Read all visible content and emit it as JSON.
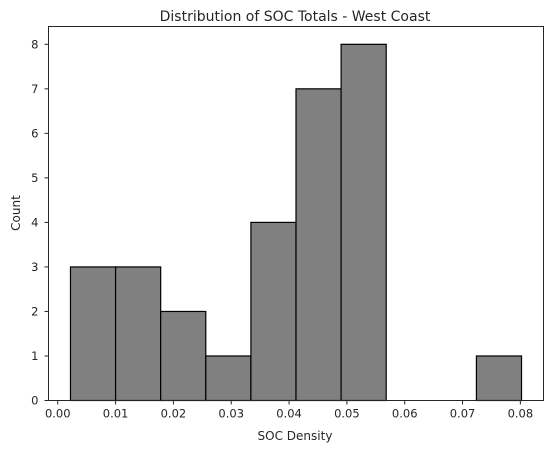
{
  "chart_data": {
    "type": "bar",
    "title": "Distribution of SOC Totals - West Coast",
    "xlabel": "SOC Density",
    "ylabel": "Count",
    "bin_edges": [
      0.0022,
      0.01,
      0.0178,
      0.0256,
      0.0334,
      0.0412,
      0.049,
      0.0568,
      0.0646,
      0.0724,
      0.0802
    ],
    "values": [
      3,
      3,
      2,
      1,
      4,
      7,
      8,
      0,
      0,
      1
    ],
    "xlim": [
      -0.0016,
      0.084
    ],
    "ylim": [
      0,
      8.4
    ],
    "xticks": [
      0.0,
      0.01,
      0.02,
      0.03,
      0.04,
      0.05,
      0.06,
      0.07,
      0.08
    ],
    "xtick_labels": [
      "0.00",
      "0.01",
      "0.02",
      "0.03",
      "0.04",
      "0.05",
      "0.06",
      "0.07",
      "0.08"
    ],
    "yticks": [
      0,
      1,
      2,
      3,
      4,
      5,
      6,
      7,
      8
    ],
    "ytick_labels": [
      "0",
      "1",
      "2",
      "3",
      "4",
      "5",
      "6",
      "7",
      "8"
    ],
    "grid": false,
    "bar_color": "#808080",
    "edge_color": "#000000"
  }
}
